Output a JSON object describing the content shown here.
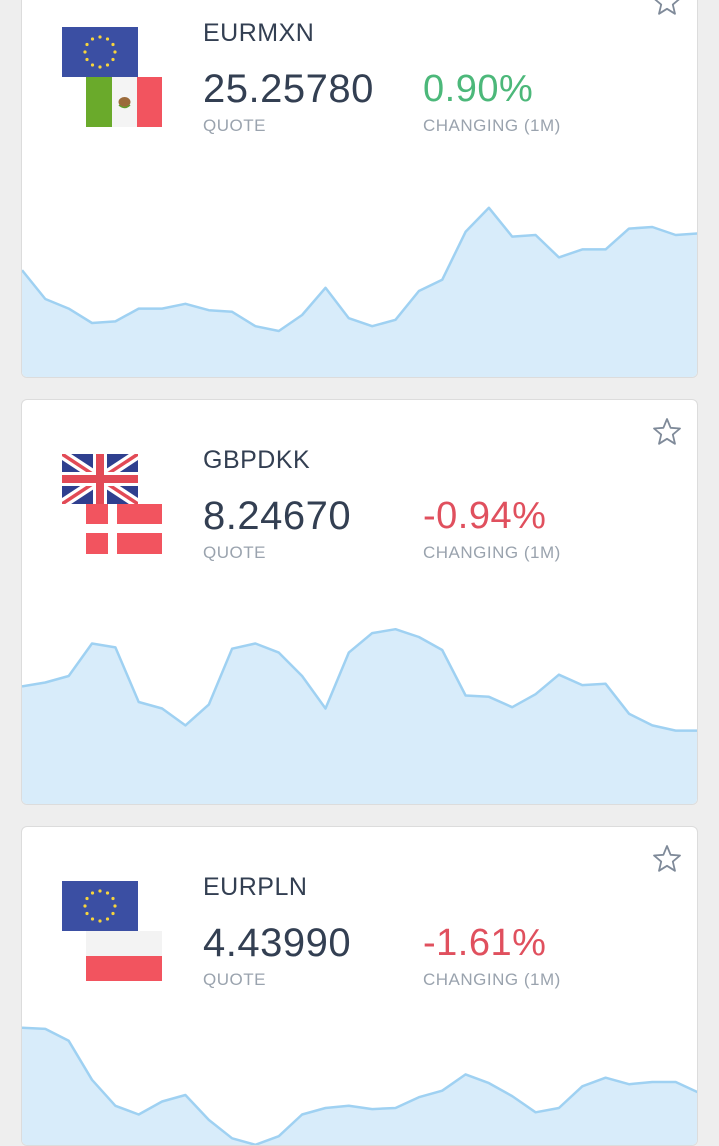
{
  "colors": {
    "positive": "#4cb87a",
    "negative": "#e0505e",
    "chart_fill": "#d8ecfa",
    "chart_line": "#9fd1f2",
    "eu_blue": "#3b4fa3",
    "eu_star": "#f7d43c"
  },
  "cards": [
    {
      "pair": "EURMXN",
      "quote": "25.25780",
      "quote_label": "QUOTE",
      "change": "0.90%",
      "change_direction": "up",
      "change_label": "CHANGING (1M)",
      "base_flag": "eu-flag-icon",
      "quote_flag": "mexico-flag-icon",
      "star": "star-icon",
      "chart_data": {
        "type": "area",
        "values": [
          68,
          50,
          44,
          35,
          36,
          44,
          44,
          47,
          43,
          42,
          33,
          30,
          40,
          57,
          38,
          33,
          37,
          55,
          62,
          92,
          107,
          89,
          90,
          76,
          81,
          81,
          94,
          95,
          90,
          91
        ],
        "ylim": [
          0,
          130
        ]
      }
    },
    {
      "pair": "GBPDKK",
      "quote": "8.24670",
      "quote_label": "QUOTE",
      "change": "-0.94%",
      "change_direction": "down",
      "change_label": "CHANGING (1M)",
      "base_flag": "uk-flag-icon",
      "quote_flag": "denmark-flag-icon",
      "star": "star-icon",
      "chart_data": {
        "type": "area",
        "values": [
          92,
          95,
          100,
          125,
          122,
          80,
          75,
          62,
          78,
          121,
          125,
          118,
          100,
          75,
          118,
          133,
          136,
          130,
          120,
          85,
          84,
          76,
          86,
          101,
          93,
          94,
          71,
          62,
          58,
          58
        ],
        "ylim": [
          0,
          160
        ]
      }
    },
    {
      "pair": "EURPLN",
      "quote": "4.43990",
      "quote_label": "QUOTE",
      "change": "-1.61%",
      "change_direction": "down",
      "change_label": "CHANGING (1M)",
      "base_flag": "eu-flag-icon",
      "quote_flag": "poland-flag-icon",
      "star": "star-icon",
      "chart_data": {
        "type": "area",
        "values": [
          90,
          89,
          78,
          42,
          18,
          10,
          22,
          28,
          5,
          -12,
          -18,
          -10,
          10,
          16,
          18,
          15,
          16,
          26,
          32,
          47,
          39,
          27,
          12,
          16,
          36,
          44,
          38,
          40,
          40,
          30
        ],
        "ylim": [
          -20,
          100
        ]
      }
    }
  ]
}
